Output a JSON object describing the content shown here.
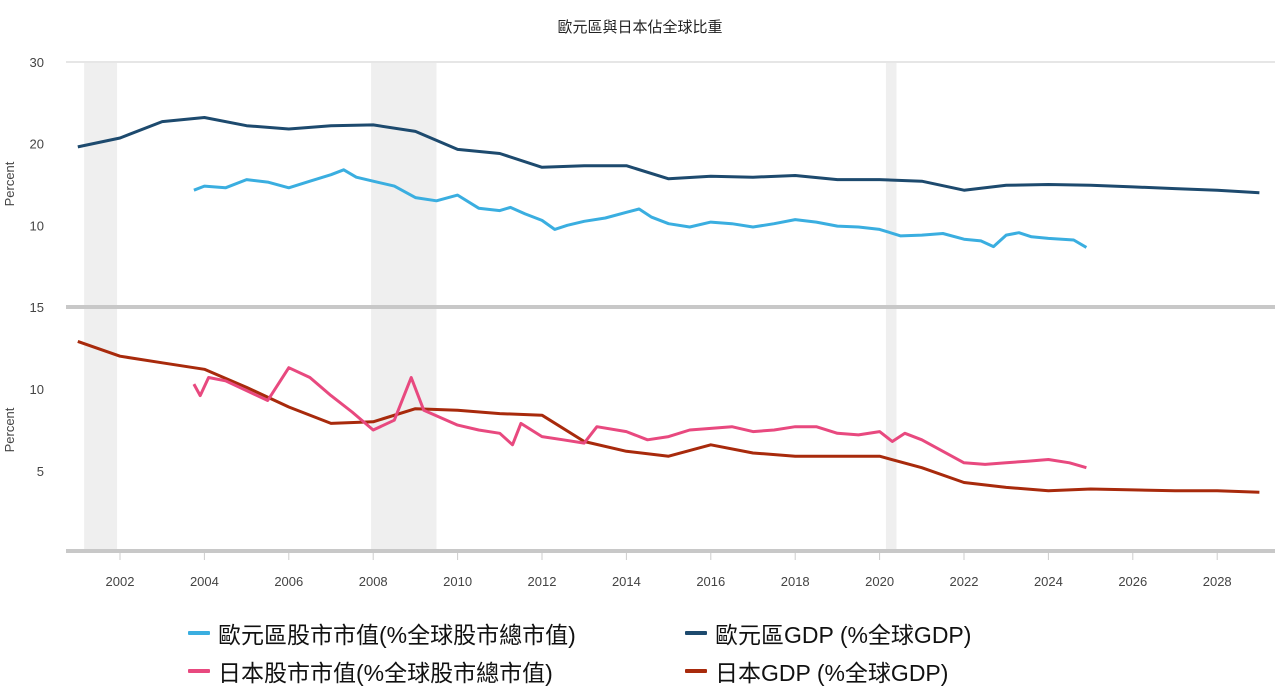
{
  "chart_data": [
    {
      "type": "line",
      "title": "歐元區與日本佔全球比重",
      "ylabel": "Percent",
      "ylim": [
        0,
        30
      ],
      "yticks": [
        "10",
        "20",
        "30"
      ],
      "xlim": [
        2000.7,
        2029.2
      ],
      "xticks": [
        "2002",
        "2004",
        "2006",
        "2008",
        "2010",
        "2012",
        "2014",
        "2016",
        "2018",
        "2020",
        "2022",
        "2024",
        "2026",
        "2028"
      ],
      "recessions": [
        [
          2001.15,
          2001.93
        ],
        [
          2007.95,
          2009.5
        ],
        [
          2020.15,
          2020.4
        ]
      ],
      "series": [
        {
          "name": "歐元區GDP (%全球GDP)",
          "color": "#1d4a6e",
          "x": [
            2001,
            2002,
            2003,
            2004,
            2005,
            2006,
            2007,
            2008,
            2009,
            2010,
            2011,
            2012,
            2013,
            2014,
            2015,
            2016,
            2017,
            2018,
            2019,
            2020,
            2021,
            2022,
            2023,
            2024,
            2025,
            2026,
            2027,
            2028,
            2029
          ],
          "y": [
            19.6,
            20.7,
            22.7,
            23.2,
            22.2,
            21.8,
            22.2,
            22.3,
            21.5,
            19.3,
            18.8,
            17.1,
            17.3,
            17.3,
            15.7,
            16.0,
            15.9,
            16.1,
            15.6,
            15.6,
            15.4,
            14.3,
            14.9,
            15.0,
            14.9,
            14.7,
            14.5,
            14.3,
            14.0
          ]
        },
        {
          "name": "歐元區股市市值(%全球股市總市值)",
          "color": "#3aaee0",
          "x": [
            2003.75,
            2004,
            2004.5,
            2005,
            2005.5,
            2006,
            2006.5,
            2007,
            2007.3,
            2007.6,
            2008,
            2008.5,
            2009,
            2009.5,
            2010,
            2010.5,
            2011,
            2011.25,
            2011.6,
            2012,
            2012.3,
            2012.6,
            2013,
            2013.5,
            2014,
            2014.3,
            2014.6,
            2015,
            2015.5,
            2016,
            2016.5,
            2017,
            2017.5,
            2018,
            2018.5,
            2019,
            2019.5,
            2020,
            2020.5,
            2021,
            2021.5,
            2022,
            2022.4,
            2022.7,
            2023,
            2023.3,
            2023.6,
            2024,
            2024.6,
            2024.9
          ],
          "y": [
            14.3,
            14.8,
            14.6,
            15.6,
            15.3,
            14.6,
            15.4,
            16.2,
            16.8,
            15.9,
            15.4,
            14.8,
            13.4,
            13.0,
            13.7,
            12.1,
            11.8,
            12.2,
            11.4,
            10.6,
            9.5,
            10.0,
            10.5,
            10.9,
            11.6,
            12.0,
            11.0,
            10.2,
            9.8,
            10.4,
            10.2,
            9.8,
            10.2,
            10.7,
            10.4,
            9.9,
            9.8,
            9.5,
            8.7,
            8.8,
            9.0,
            8.3,
            8.1,
            7.4,
            8.8,
            9.1,
            8.6,
            8.4,
            8.2,
            7.3
          ]
        }
      ]
    },
    {
      "type": "line",
      "ylabel": "Percent",
      "ylim": [
        0,
        15
      ],
      "yticks": [
        "5",
        "10",
        "15"
      ],
      "series": [
        {
          "name": "日本GDP (%全球GDP)",
          "color": "#a82a0c",
          "x": [
            2001,
            2002,
            2003,
            2004,
            2005,
            2006,
            2007,
            2008,
            2009,
            2010,
            2011,
            2012,
            2013,
            2014,
            2015,
            2016,
            2017,
            2018,
            2019,
            2020,
            2021,
            2022,
            2023,
            2024,
            2025,
            2026,
            2027,
            2028,
            2029
          ],
          "y": [
            12.9,
            12.0,
            11.6,
            11.2,
            10.1,
            8.9,
            7.9,
            8.0,
            8.8,
            8.7,
            8.5,
            8.4,
            6.8,
            6.2,
            5.9,
            6.6,
            6.1,
            5.9,
            5.9,
            5.9,
            5.2,
            4.3,
            4.0,
            3.8,
            3.9,
            3.85,
            3.8,
            3.8,
            3.7
          ]
        },
        {
          "name": "日本股市市值(%全球股市總市值)",
          "color": "#e8497f",
          "x": [
            2003.75,
            2003.9,
            2004.1,
            2004.5,
            2005,
            2005.5,
            2006,
            2006.5,
            2007,
            2007.5,
            2008,
            2008.5,
            2008.9,
            2009.2,
            2010,
            2010.5,
            2011,
            2011.3,
            2011.5,
            2012,
            2012.5,
            2013,
            2013.3,
            2014,
            2014.5,
            2015,
            2015.5,
            2016,
            2016.5,
            2017,
            2017.5,
            2018,
            2018.5,
            2019,
            2019.5,
            2020,
            2020.3,
            2020.6,
            2021,
            2021.5,
            2022,
            2022.5,
            2023,
            2023.5,
            2024,
            2024.5,
            2024.9
          ],
          "y": [
            10.3,
            9.6,
            10.7,
            10.5,
            9.9,
            9.3,
            11.3,
            10.7,
            9.6,
            8.6,
            7.5,
            8.1,
            10.7,
            8.7,
            7.8,
            7.5,
            7.3,
            6.6,
            7.9,
            7.1,
            6.9,
            6.7,
            7.7,
            7.4,
            6.9,
            7.1,
            7.5,
            7.6,
            7.7,
            7.4,
            7.5,
            7.7,
            7.7,
            7.3,
            7.2,
            7.4,
            6.8,
            7.3,
            6.9,
            6.2,
            5.5,
            5.4,
            5.5,
            5.6,
            5.7,
            5.5,
            5.2
          ]
        }
      ]
    }
  ],
  "legend": [
    {
      "label": "歐元區股市市值(%全球股市總市值)",
      "color": "#3aaee0"
    },
    {
      "label": "歐元區GDP (%全球GDP)",
      "color": "#1d4a6e"
    },
    {
      "label": "日本股市市值(%全球股市總市值)",
      "color": "#e8497f"
    },
    {
      "label": "日本GDP (%全球GDP)",
      "color": "#a82a0c"
    }
  ]
}
